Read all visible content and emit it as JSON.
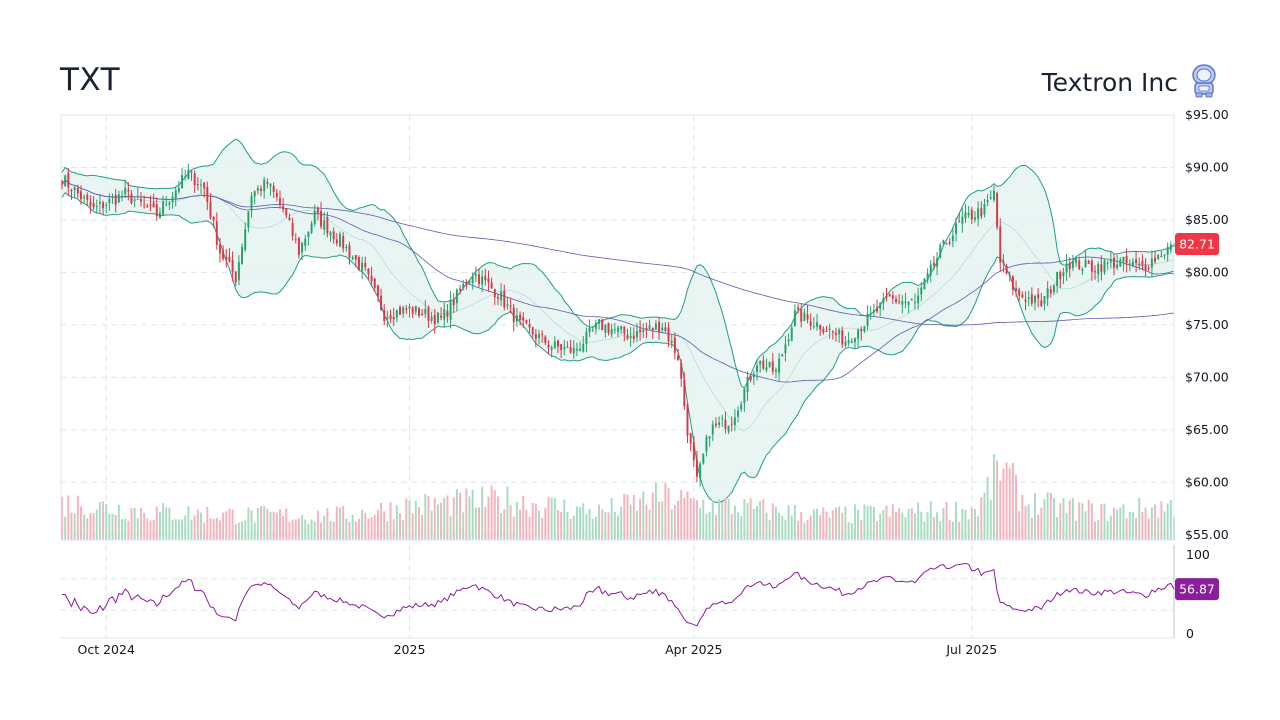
{
  "header": {
    "ticker": "TXT",
    "company": "Textron Inc",
    "logo_icon": "astronaut-logo-icon"
  },
  "colors": {
    "up": "#26a269",
    "down": "#dc3545",
    "bb_band": "#1f9e89",
    "bb_fill": "#e3f3f0",
    "sma": "#5b5bb5",
    "rsi": "#8b1e9b",
    "grid": "#dde7ee"
  },
  "chart_data": {
    "type": "candlestick",
    "x_ticks": [
      "Oct 2024",
      "2025",
      "Apr 2025",
      "Jul 2025"
    ],
    "y_ticks": [
      "$95.00",
      "$90.00",
      "$85.00",
      "$80.00",
      "$75.00",
      "$70.00",
      "$65.00",
      "$60.00",
      "$55.00"
    ],
    "ylim": [
      54.5,
      95.0
    ],
    "last_price": "82.71",
    "rsi": {
      "ticks": [
        "100",
        "0"
      ],
      "ylim": [
        0,
        100
      ],
      "last": "56.87",
      "levels": [
        70,
        30
      ]
    },
    "close_anchors": [
      [
        0,
        89.0
      ],
      [
        10,
        86.0
      ],
      [
        20,
        87.5
      ],
      [
        30,
        85.5
      ],
      [
        40,
        89.5
      ],
      [
        45,
        88.0
      ],
      [
        50,
        82.0
      ],
      [
        55,
        79.5
      ],
      [
        60,
        87.5
      ],
      [
        65,
        88.5
      ],
      [
        70,
        86.0
      ],
      [
        75,
        82.0
      ],
      [
        80,
        85.5
      ],
      [
        88,
        83.0
      ],
      [
        96,
        80.0
      ],
      [
        102,
        76.0
      ],
      [
        110,
        76.5
      ],
      [
        120,
        75.5
      ],
      [
        130,
        80.0
      ],
      [
        138,
        78.0
      ],
      [
        145,
        75.0
      ],
      [
        155,
        73.0
      ],
      [
        162,
        72.5
      ],
      [
        170,
        75.0
      ],
      [
        180,
        74.0
      ],
      [
        190,
        75.0
      ],
      [
        195,
        72.0
      ],
      [
        198,
        65.0
      ],
      [
        201,
        60.0
      ],
      [
        205,
        65.0
      ],
      [
        212,
        66.0
      ],
      [
        220,
        71.5
      ],
      [
        226,
        70.5
      ],
      [
        232,
        76.0
      ],
      [
        240,
        75.0
      ],
      [
        248,
        73.5
      ],
      [
        255,
        75.5
      ],
      [
        262,
        77.5
      ],
      [
        270,
        77.0
      ],
      [
        278,
        82.0
      ],
      [
        285,
        85.0
      ],
      [
        292,
        86.0
      ],
      [
        295,
        87.5
      ],
      [
        297,
        81.0
      ],
      [
        302,
        78.0
      ],
      [
        310,
        77.0
      ],
      [
        318,
        81.0
      ],
      [
        326,
        80.5
      ],
      [
        334,
        81.0
      ],
      [
        342,
        80.5
      ],
      [
        352,
        82.7
      ]
    ],
    "volume_anchors": [
      [
        0,
        6.0
      ],
      [
        30,
        4.5
      ],
      [
        60,
        4.0
      ],
      [
        90,
        4.0
      ],
      [
        110,
        5.5
      ],
      [
        140,
        6.5
      ],
      [
        170,
        4.5
      ],
      [
        190,
        7.0
      ],
      [
        200,
        6.0
      ],
      [
        220,
        5.0
      ],
      [
        240,
        4.0
      ],
      [
        270,
        4.5
      ],
      [
        290,
        5.0
      ],
      [
        297,
        12.0
      ],
      [
        305,
        6.0
      ],
      [
        330,
        4.5
      ],
      [
        352,
        5.5
      ]
    ]
  }
}
